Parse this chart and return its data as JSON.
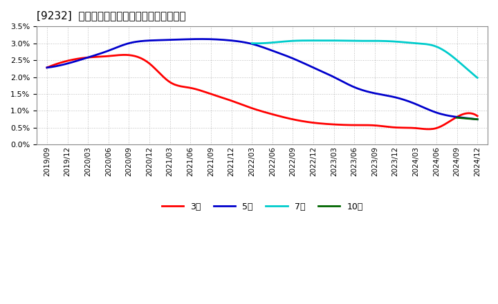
{
  "title": "[9232]  当期純利益マージンの標準偏差の推移",
  "ylim": [
    0.0,
    0.035
  ],
  "yticks": [
    0.0,
    0.005,
    0.01,
    0.015,
    0.02,
    0.025,
    0.03,
    0.035
  ],
  "background_color": "#ffffff",
  "plot_bg_color": "#ffffff",
  "grid_color": "#aaaaaa",
  "series": {
    "3year": {
      "color": "#ff0000",
      "label": "3年",
      "x": [
        0,
        3,
        6,
        9,
        12,
        15,
        18,
        21,
        24,
        27,
        30,
        33,
        36,
        39,
        42,
        45,
        48,
        51,
        54,
        57,
        60,
        63
      ],
      "y": [
        0.0228,
        0.0248,
        0.0258,
        0.0262,
        0.0265,
        0.024,
        0.0185,
        0.0168,
        0.015,
        0.013,
        0.0108,
        0.009,
        0.0075,
        0.0065,
        0.006,
        0.0058,
        0.0057,
        0.0051,
        0.0049,
        0.0049,
        0.0082,
        0.0085
      ]
    },
    "5year": {
      "color": "#0000cc",
      "label": "5年",
      "x": [
        0,
        3,
        6,
        9,
        12,
        15,
        18,
        21,
        24,
        27,
        30,
        33,
        36,
        39,
        42,
        45,
        48,
        51,
        54,
        57,
        60,
        63
      ],
      "y": [
        0.0228,
        0.024,
        0.0258,
        0.0278,
        0.03,
        0.0308,
        0.031,
        0.0312,
        0.0312,
        0.0308,
        0.0298,
        0.0278,
        0.0255,
        0.0228,
        0.02,
        0.017,
        0.0152,
        0.014,
        0.012,
        0.0095,
        0.0082,
        0.0075
      ]
    },
    "7year": {
      "color": "#00cccc",
      "label": "7年",
      "x": [
        0,
        3,
        6,
        9,
        12,
        15,
        18,
        21,
        24,
        27,
        30,
        33,
        36,
        39,
        42,
        45,
        48,
        51,
        54,
        57,
        60,
        63
      ],
      "y": [
        null,
        null,
        null,
        null,
        null,
        null,
        null,
        null,
        null,
        null,
        0.03,
        0.0302,
        0.0307,
        0.0308,
        0.0308,
        0.0307,
        0.0307,
        0.0305,
        0.03,
        0.029,
        0.025,
        0.0198
      ]
    },
    "10year": {
      "color": "#006600",
      "label": "10年",
      "x": [
        0,
        3,
        6,
        9,
        12,
        15,
        18,
        21,
        24,
        27,
        30,
        33,
        36,
        39,
        42,
        45,
        48,
        51,
        54,
        57,
        60,
        63
      ],
      "y": [
        null,
        null,
        null,
        null,
        null,
        null,
        null,
        null,
        null,
        null,
        null,
        null,
        null,
        null,
        null,
        null,
        null,
        null,
        null,
        null,
        0.008,
        0.0075
      ]
    }
  },
  "xtick_labels": [
    "2019/09",
    "2019/12",
    "2020/03",
    "2020/06",
    "2020/09",
    "2020/12",
    "2021/03",
    "2021/06",
    "2021/09",
    "2021/12",
    "2022/03",
    "2022/06",
    "2022/09",
    "2022/12",
    "2023/03",
    "2023/06",
    "2023/09",
    "2023/12",
    "2024/03",
    "2024/06",
    "2024/09",
    "2024/12"
  ],
  "legend_labels": [
    "3年",
    "5年",
    "7年",
    "10年"
  ],
  "legend_colors": [
    "#ff0000",
    "#0000cc",
    "#00cccc",
    "#006600"
  ]
}
